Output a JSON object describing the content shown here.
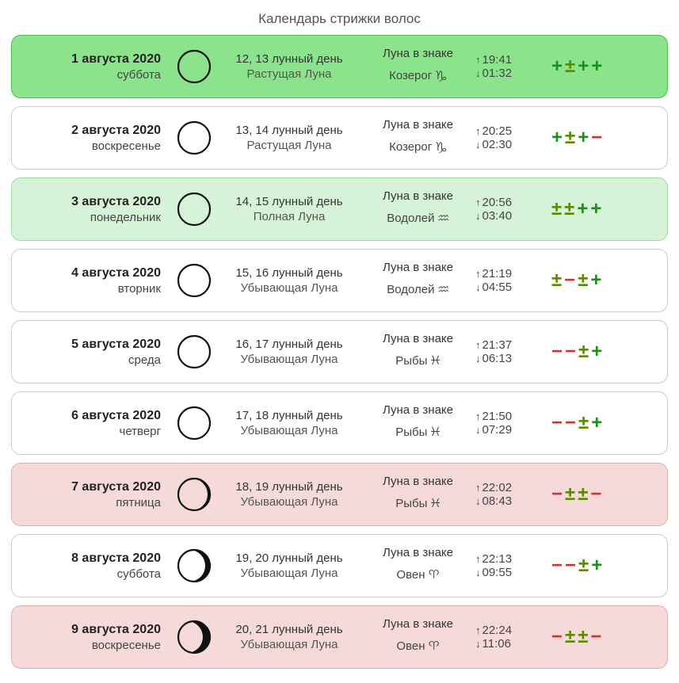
{
  "title": "Календарь стрижки волос",
  "colors": {
    "bg_green_strong": "#8be48b",
    "border_green_strong": "#4fbf4f",
    "bg_green_light": "#d7f3d7",
    "border_green_light": "#9fd99f",
    "bg_white": "#ffffff",
    "border_gray": "#cccccc",
    "bg_pink": "#f6dada",
    "border_pink": "#e0b0b0",
    "rating_green": "#1a8f1a",
    "rating_darkgreen": "#5a8a00",
    "rating_red": "#cc3333",
    "moon_stroke": "#111111"
  },
  "rows": [
    {
      "bg": "bg_green_strong",
      "border": "border_green_strong",
      "date": "1 августа 2020",
      "dow": "суббота",
      "moon": {
        "kind": "ring"
      },
      "lday": "12, 13 лунный день",
      "phase": "Растущая Луна",
      "zlabel": "Луна в знаке",
      "zsign": "Козерог",
      "zsym": "♑",
      "rise": "19:41",
      "set": "01:32",
      "rating": [
        {
          "s": "+",
          "c": "green"
        },
        {
          "s": "±",
          "c": "darkgreen"
        },
        {
          "s": "+",
          "c": "green"
        },
        {
          "s": "+",
          "c": "green"
        }
      ]
    },
    {
      "bg": "bg_white",
      "border": "border_gray",
      "date": "2 августа 2020",
      "dow": "воскресенье",
      "moon": {
        "kind": "ring"
      },
      "lday": "13, 14 лунный день",
      "phase": "Растущая Луна",
      "zlabel": "Луна в знаке",
      "zsign": "Козерог",
      "zsym": "♑",
      "rise": "20:25",
      "set": "02:30",
      "rating": [
        {
          "s": "+",
          "c": "green"
        },
        {
          "s": "±",
          "c": "darkgreen"
        },
        {
          "s": "+",
          "c": "green"
        },
        {
          "s": "−",
          "c": "red"
        }
      ]
    },
    {
      "bg": "bg_green_light",
      "border": "border_green_light",
      "date": "3 августа 2020",
      "dow": "понедельник",
      "moon": {
        "kind": "ring"
      },
      "lday": "14, 15 лунный день",
      "phase": "Полная Луна",
      "zlabel": "Луна в знаке",
      "zsign": "Водолей",
      "zsym": "♒",
      "rise": "20:56",
      "set": "03:40",
      "rating": [
        {
          "s": "±",
          "c": "darkgreen"
        },
        {
          "s": "±",
          "c": "darkgreen"
        },
        {
          "s": "+",
          "c": "green"
        },
        {
          "s": "+",
          "c": "green"
        }
      ]
    },
    {
      "bg": "bg_white",
      "border": "border_gray",
      "date": "4 августа 2020",
      "dow": "вторник",
      "moon": {
        "kind": "ring"
      },
      "lday": "15, 16 лунный день",
      "phase": "Убывающая Луна",
      "zlabel": "Луна в знаке",
      "zsign": "Водолей",
      "zsym": "♒",
      "rise": "21:19",
      "set": "04:55",
      "rating": [
        {
          "s": "±",
          "c": "darkgreen"
        },
        {
          "s": "−",
          "c": "red"
        },
        {
          "s": "±",
          "c": "darkgreen"
        },
        {
          "s": "+",
          "c": "green"
        }
      ]
    },
    {
      "bg": "bg_white",
      "border": "border_gray",
      "date": "5 августа 2020",
      "dow": "среда",
      "moon": {
        "kind": "ring"
      },
      "lday": "16, 17 лунный день",
      "phase": "Убывающая Луна",
      "zlabel": "Луна в знаке",
      "zsign": "Рыбы",
      "zsym": "♓",
      "rise": "21:37",
      "set": "06:13",
      "rating": [
        {
          "s": "−",
          "c": "red"
        },
        {
          "s": "−",
          "c": "red"
        },
        {
          "s": "±",
          "c": "darkgreen"
        },
        {
          "s": "+",
          "c": "green"
        }
      ]
    },
    {
      "bg": "bg_white",
      "border": "border_gray",
      "date": "6 августа 2020",
      "dow": "четверг",
      "moon": {
        "kind": "ring"
      },
      "lday": "17, 18 лунный день",
      "phase": "Убывающая Луна",
      "zlabel": "Луна в знаке",
      "zsign": "Рыбы",
      "zsym": "♓",
      "rise": "21:50",
      "set": "07:29",
      "rating": [
        {
          "s": "−",
          "c": "red"
        },
        {
          "s": "−",
          "c": "red"
        },
        {
          "s": "±",
          "c": "darkgreen"
        },
        {
          "s": "+",
          "c": "green"
        }
      ]
    },
    {
      "bg": "bg_pink",
      "border": "border_pink",
      "date": "7 августа 2020",
      "dow": "пятница",
      "moon": {
        "kind": "waning",
        "offset": 3
      },
      "lday": "18, 19 лунный день",
      "phase": "Убывающая Луна",
      "zlabel": "Луна в знаке",
      "zsign": "Рыбы",
      "zsym": "♓",
      "rise": "22:02",
      "set": "08:43",
      "rating": [
        {
          "s": "−",
          "c": "red"
        },
        {
          "s": "±",
          "c": "darkgreen"
        },
        {
          "s": "±",
          "c": "darkgreen"
        },
        {
          "s": "−",
          "c": "red"
        }
      ]
    },
    {
      "bg": "bg_white",
      "border": "border_gray",
      "date": "8 августа 2020",
      "dow": "суббота",
      "moon": {
        "kind": "waning",
        "offset": 6
      },
      "lday": "19, 20 лунный день",
      "phase": "Убывающая Луна",
      "zlabel": "Луна в знаке",
      "zsign": "Овен",
      "zsym": "♈",
      "rise": "22:13",
      "set": "09:55",
      "rating": [
        {
          "s": "−",
          "c": "red"
        },
        {
          "s": "−",
          "c": "red"
        },
        {
          "s": "±",
          "c": "darkgreen"
        },
        {
          "s": "+",
          "c": "green"
        }
      ]
    },
    {
      "bg": "bg_pink",
      "border": "border_pink",
      "date": "9 августа 2020",
      "dow": "воскресенье",
      "moon": {
        "kind": "waning",
        "offset": 9
      },
      "lday": "20, 21 лунный день",
      "phase": "Убывающая Луна",
      "zlabel": "Луна в знаке",
      "zsign": "Овен",
      "zsym": "♈",
      "rise": "22:24",
      "set": "11:06",
      "rating": [
        {
          "s": "−",
          "c": "red"
        },
        {
          "s": "±",
          "c": "darkgreen"
        },
        {
          "s": "±",
          "c": "darkgreen"
        },
        {
          "s": "−",
          "c": "red"
        }
      ]
    }
  ]
}
